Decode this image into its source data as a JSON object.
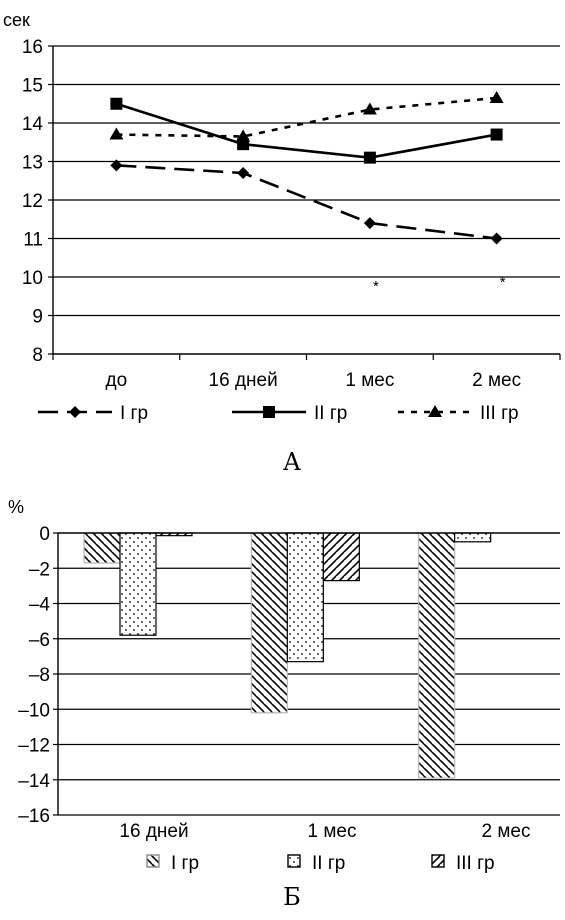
{
  "chart_data": [
    {
      "type": "line",
      "panel_label": "А",
      "ylabel": "сек",
      "ylim": [
        8,
        16
      ],
      "yticks": [
        8,
        9,
        10,
        11,
        12,
        13,
        14,
        15,
        16
      ],
      "grid": true,
      "legend_position": "bottom",
      "categories": [
        "до",
        "16 дней",
        "1 мес",
        "2 мес"
      ],
      "series": [
        {
          "name": "I гр",
          "values": [
            12.9,
            12.7,
            11.4,
            11.0
          ],
          "marker": "diamond",
          "line": "long-dash"
        },
        {
          "name": "II гр",
          "values": [
            14.5,
            13.45,
            13.1,
            13.7
          ],
          "marker": "square",
          "line": "solid"
        },
        {
          "name": "III гр",
          "values": [
            13.7,
            13.65,
            14.35,
            14.65
          ],
          "marker": "triangle",
          "line": "short-dash"
        }
      ],
      "annotations": [
        {
          "text": "*",
          "category": "1 мес",
          "y": 9.9
        },
        {
          "text": "*",
          "category": "2 мес",
          "y": 10.0
        }
      ]
    },
    {
      "type": "bar",
      "panel_label": "Б",
      "ylabel": "%",
      "ylim": [
        -16,
        0
      ],
      "yticks": [
        0,
        -2,
        -4,
        -6,
        -8,
        -10,
        -12,
        -14,
        -16
      ],
      "grid": true,
      "legend_position": "bottom",
      "categories": [
        "16 дней",
        "1 мес",
        "2 мес"
      ],
      "series": [
        {
          "name": "I гр",
          "values": [
            -1.7,
            -10.2,
            -13.9
          ],
          "pattern": "diagonal-back"
        },
        {
          "name": "II гр",
          "values": [
            -5.8,
            -7.3,
            -0.5
          ],
          "pattern": "dots"
        },
        {
          "name": "III гр",
          "values": [
            -0.15,
            -2.7,
            0
          ],
          "pattern": "diagonal-forward"
        }
      ]
    }
  ]
}
